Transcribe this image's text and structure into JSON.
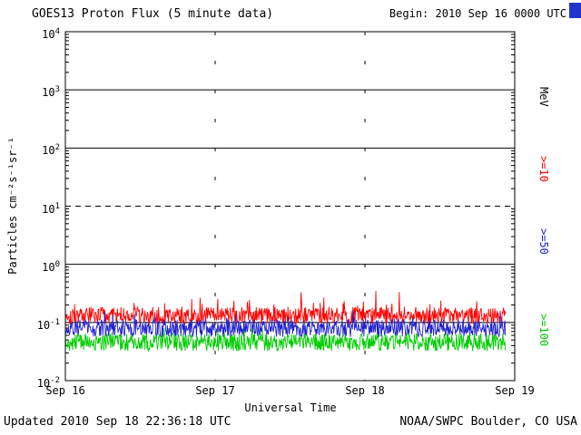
{
  "header": {
    "title": "GOES13 Proton Flux (5 minute data)",
    "begin_label": "Begin: 2010 Sep 16 0000 UTC"
  },
  "footer": {
    "updated": "Updated 2010 Sep 18 22:36:18 UTC",
    "credit": "NOAA/SWPC Boulder, CO USA"
  },
  "corner_marker_color": "#2233cc",
  "chart_data": {
    "type": "line",
    "title": "GOES13 Proton Flux (5 minute data)",
    "begin_label": "Begin: 2010 Sep 16 0000 UTC",
    "xlabel": "Universal Time",
    "ylabel": "Particles cm⁻²s⁻¹sr⁻¹",
    "y_scale": "log10",
    "ylim_exponents": [
      -2,
      4
    ],
    "y_tick_exponents": [
      4,
      3,
      2,
      1,
      0,
      -1,
      -2
    ],
    "grid": {
      "solid_exponents": [
        3,
        2,
        0,
        -1
      ],
      "dashed_exponents": [
        1
      ],
      "vertical_day_lines": [
        1,
        2
      ]
    },
    "x_ticks": [
      "Sep 16",
      "Sep 17",
      "Sep 18",
      "Sep 19"
    ],
    "x_range_days": 3,
    "points_per_day": 288,
    "data_end_fraction": 0.981,
    "series": [
      {
        "name": ">=10 MeV",
        "color": "#ff0000",
        "typical_flux": 0.13,
        "flux_min": 0.07,
        "flux_max": 0.45,
        "log10_base": -0.88,
        "log10_noise": 0.15,
        "spike_log10": 0.3,
        "spike_prob": 0.06,
        "seed": 101
      },
      {
        "name": ">=50 MeV",
        "color": "#2222cc",
        "typical_flux": 0.08,
        "flux_min": 0.04,
        "flux_max": 0.2,
        "log10_base": -1.1,
        "log10_noise": 0.15,
        "spike_log10": 0.2,
        "spike_prob": 0.05,
        "seed": 202
      },
      {
        "name": ">=100 MeV",
        "color": "#00cc00",
        "typical_flux": 0.05,
        "flux_min": 0.025,
        "flux_max": 0.09,
        "log10_base": -1.34,
        "log10_noise": 0.15,
        "spike_log10": 0.12,
        "spike_prob": 0.04,
        "seed": 303
      }
    ],
    "right_axis_labels": [
      {
        "text": "MeV",
        "color": "#000000"
      },
      {
        "text": ">=10",
        "color": "#ff0000"
      },
      {
        "text": ">=50",
        "color": "#2222cc"
      },
      {
        "text": ">=100",
        "color": "#00cc00"
      }
    ]
  }
}
